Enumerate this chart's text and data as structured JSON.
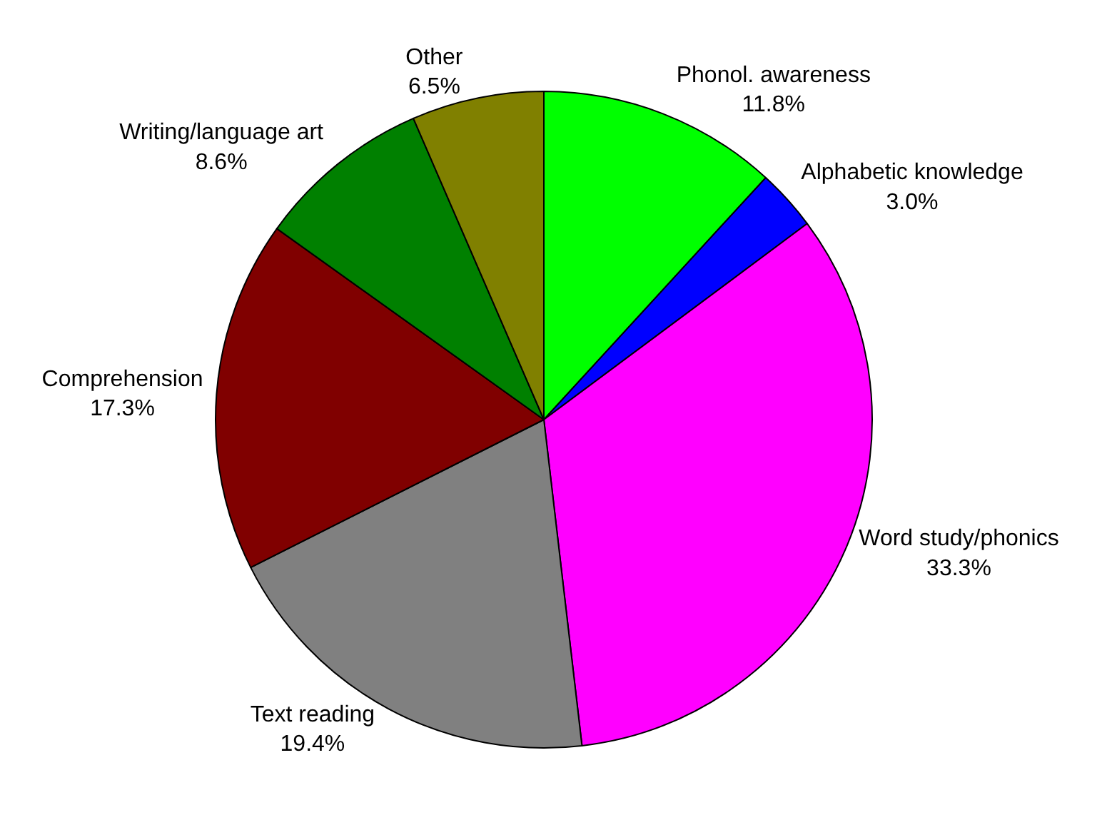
{
  "chart_data": {
    "type": "pie",
    "categories": [
      "Phonol. awareness",
      "Alphabetic knowledge",
      "Word study/phonics",
      "Text reading",
      "Comprehension",
      "Writing/language art",
      "Other"
    ],
    "values": [
      11.8,
      3.0,
      33.3,
      19.4,
      17.3,
      8.6,
      6.5
    ],
    "value_labels": [
      "11.8%",
      "3.0%",
      "33.3%",
      "19.4%",
      "17.3%",
      "8.6%",
      "6.5%"
    ],
    "colors": [
      "#00ff00",
      "#0000ff",
      "#ff00ff",
      "#808080",
      "#800000",
      "#008000",
      "#808000"
    ],
    "legend": false
  }
}
